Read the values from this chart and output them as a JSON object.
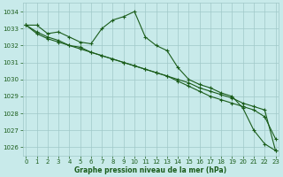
{
  "bg_color": "#c8eaea",
  "grid_color": "#a0c8c8",
  "line_color": "#1a5c1a",
  "xlabel": "Graphe pression niveau de la mer (hPa)",
  "xlabel_color": "#1a5c1a",
  "ylim": [
    1025.5,
    1034.5
  ],
  "xlim": [
    -0.3,
    23.3
  ],
  "yticks": [
    1026,
    1027,
    1028,
    1029,
    1030,
    1031,
    1032,
    1033,
    1034
  ],
  "xticks": [
    0,
    1,
    2,
    3,
    4,
    5,
    6,
    7,
    8,
    9,
    10,
    11,
    12,
    13,
    14,
    15,
    16,
    17,
    18,
    19,
    20,
    21,
    22,
    23
  ],
  "series": [
    [
      1033.2,
      1033.2,
      1032.7,
      1032.8,
      1032.5,
      1032.2,
      1032.1,
      1033.0,
      1033.5,
      1033.7,
      1034.0,
      1032.5,
      1032.0,
      1031.7,
      1030.7,
      1030.0,
      1029.7,
      1029.5,
      1029.2,
      1029.0,
      1028.3,
      1027.0,
      1026.2,
      1025.8
    ],
    [
      1033.2,
      1032.7,
      1032.4,
      1032.2,
      1032.0,
      1031.8,
      1031.6,
      1031.4,
      1031.2,
      1031.0,
      1030.8,
      1030.6,
      1030.4,
      1030.2,
      1030.0,
      1029.8,
      1029.5,
      1029.3,
      1029.1,
      1028.9,
      1028.6,
      1028.4,
      1028.2,
      1025.8
    ],
    [
      1033.2,
      1032.8,
      1032.5,
      1032.3,
      1032.0,
      1031.9,
      1031.6,
      1031.4,
      1031.2,
      1031.0,
      1030.8,
      1030.6,
      1030.4,
      1030.2,
      1029.9,
      1029.6,
      1029.3,
      1029.0,
      1028.8,
      1028.6,
      1028.4,
      1028.2,
      1027.8,
      1026.5
    ]
  ]
}
